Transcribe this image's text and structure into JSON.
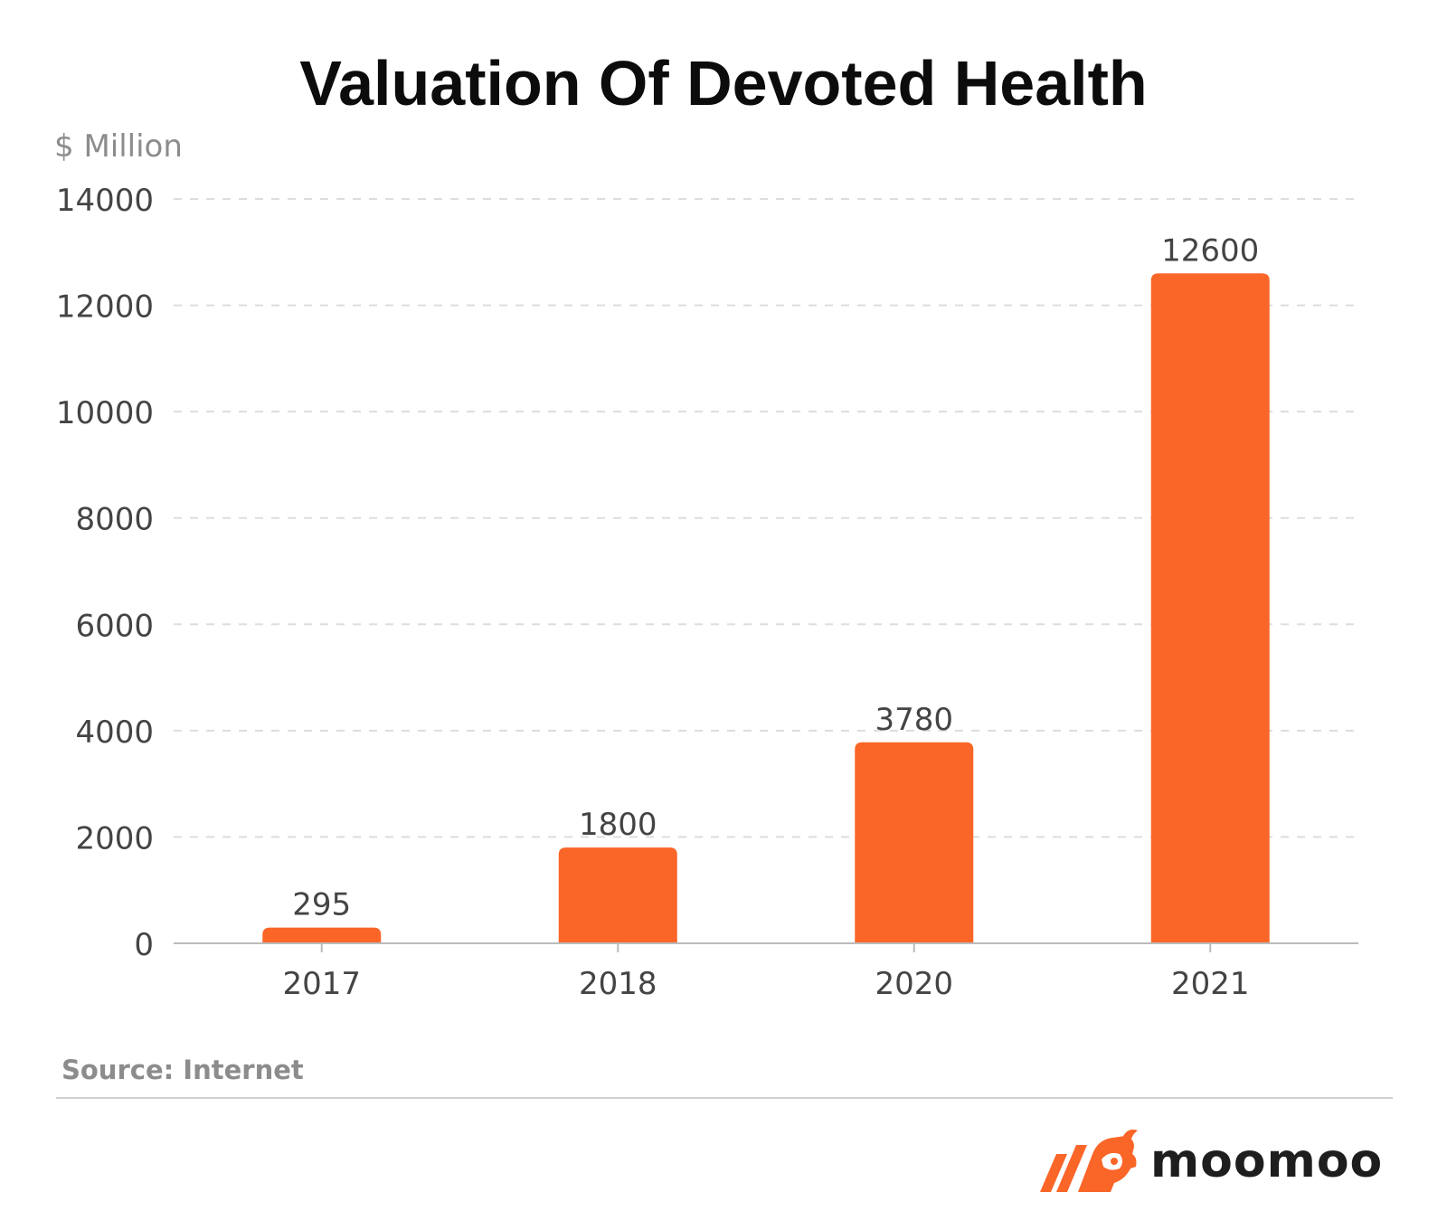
{
  "title": "Valuation Of Devoted Health",
  "unit_label": "$ Million",
  "source": "Source: Internet",
  "brand": {
    "name": "moomoo",
    "logo_icon": "moomoo-bull-icon",
    "logo_color": "#fa6528"
  },
  "colors": {
    "bar": "#fa6628",
    "grid": "#dddddd",
    "axis": "#bbbbbb",
    "tick_text": "#444444",
    "title": "#0c0c0c",
    "muted": "#8c8c8c"
  },
  "chart_data": {
    "type": "bar",
    "title": "Valuation Of Devoted Health",
    "ylabel": "$ Million",
    "xlabel": "",
    "categories": [
      "2017",
      "2018",
      "2020",
      "2021"
    ],
    "values": [
      295,
      1800,
      3780,
      12600
    ],
    "data_labels": [
      "295",
      "1800",
      "3780",
      "12600"
    ],
    "ylim": [
      0,
      14000
    ],
    "yticks": [
      0,
      2000,
      4000,
      6000,
      8000,
      10000,
      12000,
      14000
    ],
    "ytick_labels": [
      "0",
      "2000",
      "4000",
      "6000",
      "8000",
      "10000",
      "12000",
      "14000"
    ],
    "grid": true,
    "grid_style": "dashed",
    "legend": "none"
  }
}
